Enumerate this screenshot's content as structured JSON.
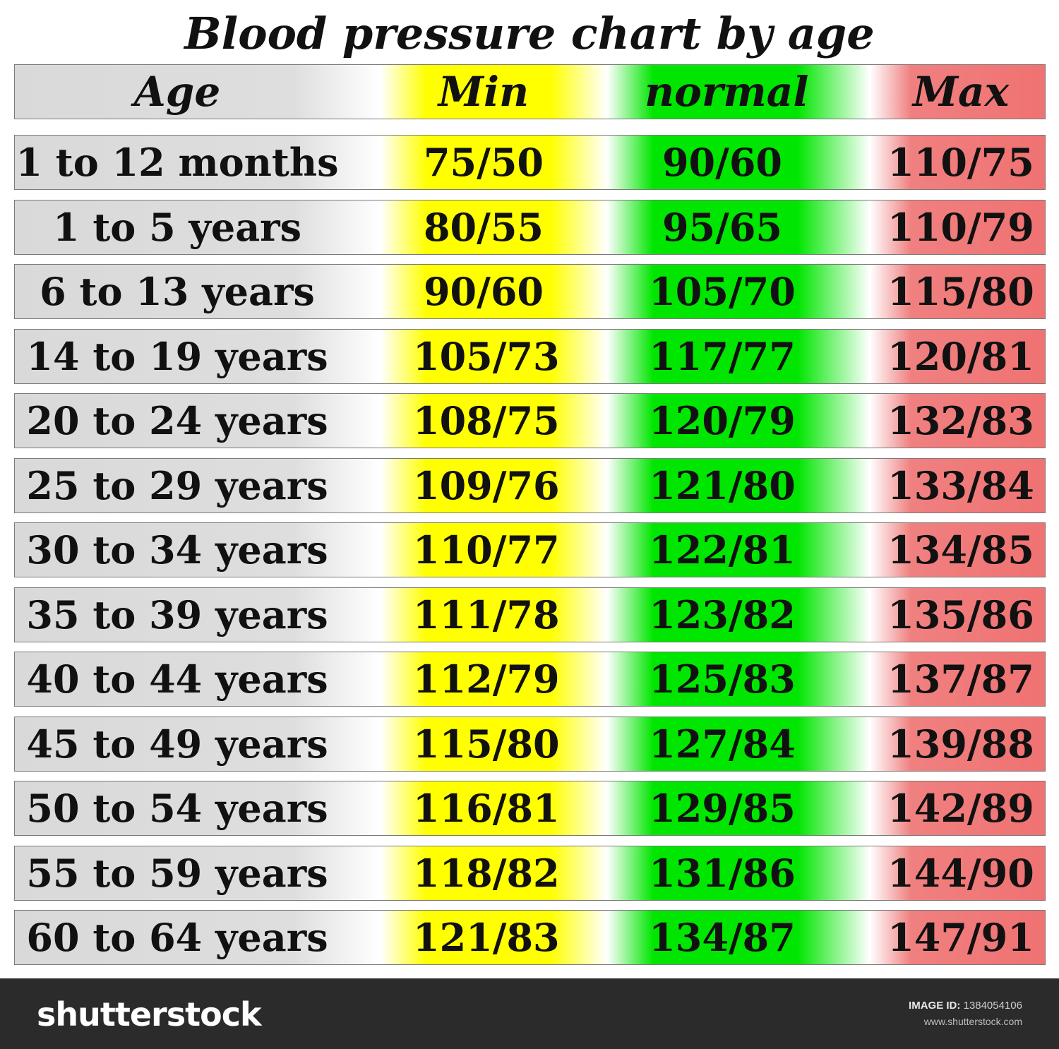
{
  "title": "Blood pressure chart by age",
  "header": {
    "age": "Age",
    "min": "Min",
    "normal": "normal",
    "max": "Max"
  },
  "rows": [
    {
      "age": "1 to 12 months",
      "min": "75/50",
      "normal": "90/60",
      "max": "110/75"
    },
    {
      "age": "1 to 5 years",
      "min": "80/55",
      "normal": "95/65",
      "max": "110/79"
    },
    {
      "age": "6 to 13 years",
      "min": "90/60",
      "normal": "105/70",
      "max": "115/80"
    },
    {
      "age": "14 to 19 years",
      "min": "105/73",
      "normal": "117/77",
      "max": "120/81"
    },
    {
      "age": "20 to 24 years",
      "min": "108/75",
      "normal": "120/79",
      "max": "132/83"
    },
    {
      "age": "25 to 29 years",
      "min": "109/76",
      "normal": "121/80",
      "max": "133/84"
    },
    {
      "age": "30 to 34 years",
      "min": "110/77",
      "normal": "122/81",
      "max": "134/85"
    },
    {
      "age": "35 to 39 years",
      "min": "111/78",
      "normal": "123/82",
      "max": "135/86"
    },
    {
      "age": "40 to 44 years",
      "min": "112/79",
      "normal": "125/83",
      "max": "137/87"
    },
    {
      "age": "45 to 49 years",
      "min": "115/80",
      "normal": "127/84",
      "max": "139/88"
    },
    {
      "age": "50 to 54 years",
      "min": "116/81",
      "normal": "129/85",
      "max": "142/89"
    },
    {
      "age": "55 to 59 years",
      "min": "118/82",
      "normal": "131/86",
      "max": "144/90"
    },
    {
      "age": "60 to 64 years",
      "min": "121/83",
      "normal": "134/87",
      "max": "147/91"
    }
  ],
  "colors": {
    "min": "#ffff00",
    "normal": "#00e600",
    "max": "#f07272",
    "age": "#d9d9d9"
  },
  "footer": {
    "logo": "shutterstock",
    "image_id_label": "IMAGE ID:",
    "image_id": "1384054106",
    "site": "www.shutterstock.com"
  }
}
